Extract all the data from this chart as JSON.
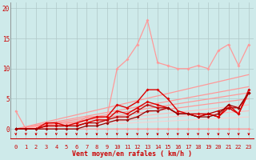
{
  "title": "",
  "xlabel": "Vent moyen/en rafales ( km/h )",
  "ylabel": "",
  "bg_color": "#ceeaea",
  "grid_color": "#aaaaaa",
  "text_color": "#cc0000",
  "xmin": -0.5,
  "xmax": 23.5,
  "ymin": -1.5,
  "ymax": 21,
  "yticks": [
    0,
    5,
    10,
    15,
    20
  ],
  "xticks": [
    0,
    1,
    2,
    3,
    4,
    5,
    6,
    7,
    8,
    9,
    10,
    11,
    12,
    13,
    14,
    15,
    16,
    17,
    18,
    19,
    20,
    21,
    22,
    23
  ],
  "series_light": [
    {
      "x": [
        0,
        1,
        2,
        3,
        4,
        5,
        6,
        7,
        8,
        9,
        10,
        11,
        12,
        13,
        14,
        15,
        16,
        17,
        18,
        19,
        20,
        21,
        22,
        23
      ],
      "y": [
        3.0,
        0.0,
        0.0,
        0.0,
        0.0,
        0.0,
        0.0,
        0.0,
        0.0,
        0.0,
        0.0,
        0.0,
        0.0,
        0.0,
        0.0,
        0.0,
        0.0,
        0.0,
        0.0,
        0.0,
        0.0,
        0.0,
        0.0,
        0.0
      ],
      "color": "#ff9999",
      "lw": 0.9,
      "marker": "D",
      "ms": 2.0
    },
    {
      "x": [
        0,
        1,
        2,
        3,
        4,
        5,
        6,
        7,
        8,
        9,
        10,
        11,
        12,
        13,
        14,
        15,
        16,
        17,
        18,
        19,
        20,
        21,
        22,
        23
      ],
      "y": [
        0.0,
        0.0,
        0.0,
        1.0,
        1.0,
        1.0,
        1.0,
        2.0,
        2.0,
        2.0,
        10.0,
        11.5,
        14.0,
        18.0,
        11.0,
        10.5,
        10.0,
        10.0,
        10.5,
        10.0,
        13.0,
        14.0,
        10.5,
        14.0
      ],
      "color": "#ff9999",
      "lw": 0.9,
      "marker": "D",
      "ms": 2.0
    }
  ],
  "trend_lines": [
    {
      "x0": 0,
      "y0": 0.0,
      "x1": 23,
      "y1": 9.0,
      "color": "#ff9999",
      "lw": 0.9
    },
    {
      "x0": 0,
      "y0": 0.0,
      "x1": 23,
      "y1": 7.0,
      "color": "#ff9999",
      "lw": 0.9
    },
    {
      "x0": 0,
      "y0": 0.0,
      "x1": 23,
      "y1": 6.0,
      "color": "#ff9999",
      "lw": 0.9
    },
    {
      "x0": 0,
      "y0": 0.0,
      "x1": 23,
      "y1": 5.0,
      "color": "#ff9999",
      "lw": 0.9
    },
    {
      "x0": 0,
      "y0": 0.0,
      "x1": 23,
      "y1": 4.0,
      "color": "#ffbbbb",
      "lw": 0.8
    },
    {
      "x0": 0,
      "y0": 0.0,
      "x1": 23,
      "y1": 3.0,
      "color": "#ffbbbb",
      "lw": 0.8
    },
    {
      "x0": 0,
      "y0": 0.0,
      "x1": 23,
      "y1": 2.0,
      "color": "#ffcccc",
      "lw": 0.7
    }
  ],
  "series_dark": [
    {
      "x": [
        0,
        1,
        2,
        3,
        4,
        5,
        6,
        7,
        8,
        9,
        10,
        11,
        12,
        13,
        14,
        15,
        16,
        17,
        18,
        19,
        20,
        21,
        22,
        23
      ],
      "y": [
        0.0,
        0.0,
        0.0,
        1.0,
        1.0,
        0.5,
        1.0,
        1.5,
        2.0,
        2.0,
        4.0,
        3.5,
        4.5,
        6.5,
        6.5,
        5.0,
        3.0,
        2.5,
        2.5,
        2.5,
        2.0,
        4.0,
        2.5,
        6.5
      ],
      "color": "#dd0000",
      "lw": 1.0,
      "marker": "D",
      "ms": 2.0
    },
    {
      "x": [
        0,
        1,
        2,
        3,
        4,
        5,
        6,
        7,
        8,
        9,
        10,
        11,
        12,
        13,
        14,
        15,
        16,
        17,
        18,
        19,
        20,
        21,
        22,
        23
      ],
      "y": [
        0.0,
        0.0,
        0.0,
        0.5,
        0.5,
        0.5,
        0.5,
        1.0,
        1.5,
        1.5,
        3.0,
        2.5,
        3.5,
        4.5,
        4.0,
        3.5,
        2.5,
        2.5,
        2.0,
        2.5,
        2.0,
        3.5,
        2.5,
        6.0
      ],
      "color": "#dd0000",
      "lw": 1.0,
      "marker": "D",
      "ms": 2.0
    },
    {
      "x": [
        0,
        1,
        2,
        3,
        4,
        5,
        6,
        7,
        8,
        9,
        10,
        11,
        12,
        13,
        14,
        15,
        16,
        17,
        18,
        19,
        20,
        21,
        22,
        23
      ],
      "y": [
        0.0,
        0.0,
        0.0,
        0.5,
        0.5,
        0.5,
        0.5,
        1.0,
        1.0,
        1.5,
        2.0,
        2.0,
        3.0,
        4.0,
        3.5,
        3.5,
        2.5,
        2.5,
        2.0,
        2.5,
        3.0,
        3.5,
        3.5,
        6.0
      ],
      "color": "#bb0000",
      "lw": 0.9,
      "marker": "D",
      "ms": 2.0
    },
    {
      "x": [
        0,
        1,
        2,
        3,
        4,
        5,
        6,
        7,
        8,
        9,
        10,
        11,
        12,
        13,
        14,
        15,
        16,
        17,
        18,
        19,
        20,
        21,
        22,
        23
      ],
      "y": [
        0.0,
        0.0,
        0.0,
        0.0,
        0.0,
        0.0,
        0.0,
        0.5,
        0.5,
        1.0,
        1.5,
        1.5,
        2.0,
        3.0,
        3.0,
        3.5,
        2.5,
        2.5,
        2.0,
        2.0,
        2.5,
        4.0,
        3.5,
        6.0
      ],
      "color": "#990000",
      "lw": 0.9,
      "marker": "D",
      "ms": 2.0
    }
  ],
  "arrow_color": "#cc0000"
}
